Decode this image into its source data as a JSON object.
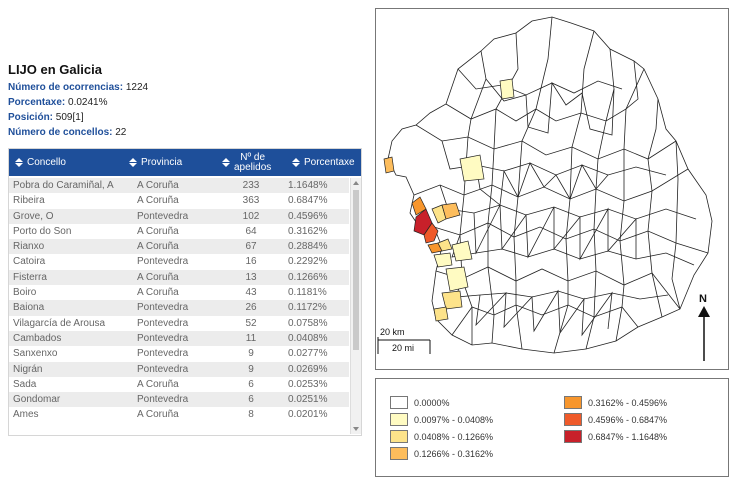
{
  "heading": "LIJO en Galicia",
  "stats": [
    {
      "label": "Número de ocorrencias:",
      "value": " 1224"
    },
    {
      "label": "Porcentaxe:",
      "value": " 0.0241%"
    },
    {
      "label": "Posición:",
      "value": " 509[1]"
    },
    {
      "label": "Número de concellos:",
      "value": " 22"
    }
  ],
  "table": {
    "headers": {
      "concello": "Concello",
      "provincia": "Provincia",
      "apelidos_1": "Nº de",
      "apelidos_2": "apelidos",
      "porcentaxe": "Porcentaxe"
    },
    "rows": [
      [
        "Pobra do Caramiñal, A",
        "A Coruña",
        "233",
        "1.1648%"
      ],
      [
        "Ribeira",
        "A Coruña",
        "363",
        "0.6847%"
      ],
      [
        "Grove, O",
        "Pontevedra",
        "102",
        "0.4596%"
      ],
      [
        "Porto do Son",
        "A Coruña",
        "64",
        "0.3162%"
      ],
      [
        "Rianxo",
        "A Coruña",
        "67",
        "0.2884%"
      ],
      [
        "Catoira",
        "Pontevedra",
        "16",
        "0.2292%"
      ],
      [
        "Fisterra",
        "A Coruña",
        "13",
        "0.1266%"
      ],
      [
        "Boiro",
        "A Coruña",
        "43",
        "0.1181%"
      ],
      [
        "Baiona",
        "Pontevedra",
        "26",
        "0.1172%"
      ],
      [
        "Vilagarcía de Arousa",
        "Pontevedra",
        "52",
        "0.0758%"
      ],
      [
        "Cambados",
        "Pontevedra",
        "11",
        "0.0408%"
      ],
      [
        "Sanxenxo",
        "Pontevedra",
        "9",
        "0.0277%"
      ],
      [
        "Nigrán",
        "Pontevedra",
        "9",
        "0.0269%"
      ],
      [
        "Sada",
        "A Coruña",
        "6",
        "0.0253%"
      ],
      [
        "Gondomar",
        "Pontevedra",
        "6",
        "0.0251%"
      ],
      [
        "Ames",
        "A Coruña",
        "8",
        "0.0201%"
      ]
    ]
  },
  "map": {
    "scale_km": "20 km",
    "scale_mi": "20 mi",
    "north": "N"
  },
  "legend": [
    {
      "label": "0.0000%",
      "color": "#ffffff"
    },
    {
      "label": "0.0097% - 0.0408%",
      "color": "#fffbc2"
    },
    {
      "label": "0.0408% - 0.1266%",
      "color": "#fde38a"
    },
    {
      "label": "0.1266% - 0.3162%",
      "color": "#fdbd5c"
    },
    {
      "label": "0.3162% - 0.4596%",
      "color": "#f7962d"
    },
    {
      "label": "0.4596% - 0.6847%",
      "color": "#ef5a2a"
    },
    {
      "label": "0.6847% - 1.1648%",
      "color": "#c8202a"
    }
  ],
  "icons": {
    "sort": "sort-icon",
    "north_arrow": "north-arrow-icon"
  }
}
